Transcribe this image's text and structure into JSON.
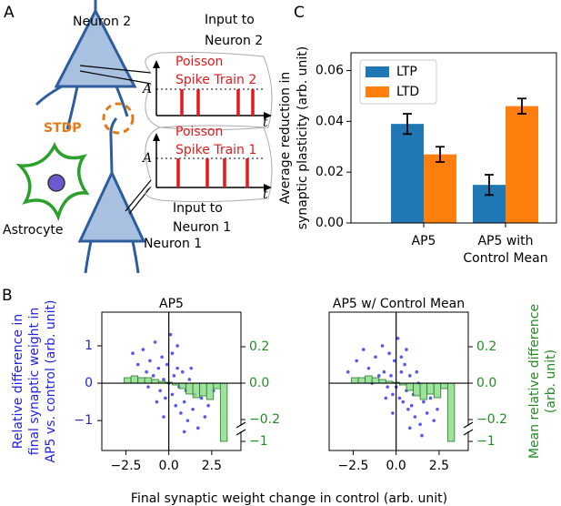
{
  "panel_labels": [
    "A",
    "B",
    "C"
  ],
  "diagram": {
    "neuron_2": "Neuron 2",
    "neuron_1": "Neuron 1",
    "astrocyte": "Astrocyte",
    "stdp": "STDP",
    "input_2": [
      "Input to",
      "Neuron 2"
    ],
    "train_2": [
      "Poisson",
      "Spike Train 2"
    ],
    "input_1": [
      "Input to",
      "Neuron 1"
    ],
    "train_1": [
      "Poisson",
      "Spike Train 1"
    ],
    "amplitude": "A",
    "time": "t"
  },
  "chart_data": [
    {
      "type": "bar",
      "ylabel": [
        "Average reduction in",
        "synaptic plasticity (arb. unit)"
      ],
      "categories": [
        [
          "AP5"
        ],
        [
          "AP5 with",
          "Control Mean"
        ]
      ],
      "series": [
        {
          "name": "LTP",
          "color": "#1f77b4",
          "values": [
            0.039,
            0.015
          ],
          "errors": [
            0.004,
            0.004
          ]
        },
        {
          "name": "LTD",
          "color": "#ff7f0e",
          "values": [
            0.027,
            0.046
          ],
          "errors": [
            0.003,
            0.003
          ]
        }
      ],
      "ylim": [
        0,
        0.067
      ],
      "yticks": [
        {
          "value": 0,
          "label": "0.00"
        },
        {
          "value": 0.02,
          "label": "0.02"
        },
        {
          "value": 0.04,
          "label": "0.04"
        },
        {
          "value": 0.06,
          "label": "0.06"
        }
      ],
      "legend": "upper-left"
    },
    {
      "type": "scatter",
      "title": "AP5",
      "ylabel": [
        "Relative difference in",
        "final synaptic weight in",
        "AP5 vs. control (arb. unit)"
      ],
      "xlabel": "Final synaptic weight change in control (arb. unit)",
      "ycolor": "#2323e0",
      "y2color": "#238b23",
      "xlim": [
        -3.9,
        4.2
      ],
      "xticks": [
        {
          "value": -2.5,
          "label": "−2.5"
        },
        {
          "value": 0,
          "label": "0.0"
        },
        2.5
      ],
      "ylim": [
        -1.8,
        1.9
      ],
      "yticks": [
        {
          "value": -1,
          "label": "−1"
        },
        0,
        1
      ],
      "y2lim": [
        -1.05,
        0.39
      ],
      "y2break": [
        -0.23,
        -0.95
      ],
      "y2ticks": [
        0.2,
        {
          "value": 0,
          "label": "0.0"
        },
        {
          "value": -0.2,
          "label": "−0.2"
        },
        {
          "value": -1,
          "label": "−1"
        }
      ],
      "points": {
        "color": "#3a3af5",
        "x": [
          -2.1,
          -1.8,
          -1.5,
          -1.3,
          -1.1,
          -0.9,
          -0.8,
          -0.6,
          -0.5,
          -0.4,
          -0.3,
          -0.2,
          -0.1,
          0.0,
          0.1,
          0.2,
          0.3,
          0.4,
          0.5,
          0.6,
          0.7,
          0.8,
          0.9,
          1.0,
          1.1,
          1.2,
          1.4,
          1.5,
          1.7,
          1.9,
          2.1,
          2.3,
          -0.7,
          0.2,
          -1.2,
          0.9,
          1.3,
          -0.3,
          0.5,
          2.6
        ],
        "y": [
          0.8,
          0.5,
          0.9,
          0.3,
          0.6,
          0.2,
          1.1,
          0.4,
          -0.2,
          0.7,
          0.1,
          -0.4,
          0.5,
          0.0,
          1.3,
          -0.3,
          0.2,
          -0.6,
          0.4,
          -0.1,
          -0.8,
          0.3,
          -0.5,
          -0.2,
          -1.0,
          0.1,
          -0.7,
          -0.3,
          -1.2,
          -0.4,
          -0.9,
          -0.6,
          -0.5,
          0.8,
          -0.1,
          -1.3,
          0.4,
          -0.9,
          1.0,
          -0.2
        ]
      },
      "histogram": {
        "axis": "y2",
        "color": "#86db86",
        "edgecolor": "#2a7a2a",
        "bins": [
          -2.6,
          -2.2,
          -1.8,
          -1.4,
          -1.0,
          -0.6,
          -0.2,
          0.2,
          0.6,
          1.0,
          1.4,
          1.8,
          2.2,
          2.6,
          3.0,
          3.4
        ],
        "values": [
          0.03,
          0.04,
          0.03,
          0.03,
          0.02,
          0.01,
          0.005,
          -0.01,
          -0.03,
          -0.06,
          -0.08,
          -0.07,
          -0.09,
          -0.03,
          -1.0
        ]
      }
    },
    {
      "type": "scatter",
      "title": "AP5 w/ Control Mean",
      "y2label": [
        "Mean relative difference",
        "(arb. unit)"
      ],
      "ycolor": "#2323e0",
      "y2color": "#238b23",
      "xlim": [
        -3.9,
        4.2
      ],
      "xticks": [
        {
          "value": -2.5,
          "label": "−2.5"
        },
        {
          "value": 0,
          "label": "0.0"
        },
        2.5
      ],
      "ylim": [
        -1.8,
        1.9
      ],
      "y2lim": [
        -1.05,
        0.39
      ],
      "y2break": [
        -0.23,
        -0.95
      ],
      "y2ticks": [
        0.2,
        {
          "value": 0,
          "label": "0.0"
        },
        {
          "value": -0.2,
          "label": "−0.2"
        },
        {
          "value": -1,
          "label": "−1"
        }
      ],
      "points": {
        "color": "#3a3af5",
        "x": [
          -2.3,
          -1.9,
          -1.6,
          -1.2,
          -1.0,
          -0.8,
          -0.7,
          -0.5,
          -0.4,
          -0.3,
          -0.2,
          -0.1,
          0.0,
          0.1,
          0.2,
          0.3,
          0.4,
          0.5,
          0.6,
          0.7,
          0.8,
          0.9,
          1.0,
          1.1,
          1.3,
          1.4,
          1.6,
          1.8,
          2.0,
          2.2,
          2.4,
          -0.6,
          0.3,
          -1.4,
          0.8,
          1.2,
          -0.2,
          0.6,
          -2.8,
          1.5
        ],
        "y": [
          0.6,
          0.9,
          0.4,
          0.7,
          0.2,
          1.0,
          0.3,
          -0.1,
          0.8,
          0.2,
          -0.3,
          0.6,
          -0.1,
          1.2,
          -0.4,
          0.3,
          -0.5,
          0.5,
          -0.2,
          -0.7,
          0.2,
          -0.6,
          -0.3,
          -0.9,
          0.0,
          -1.1,
          -0.5,
          -0.8,
          -0.4,
          -1.0,
          -0.7,
          -0.4,
          0.7,
          0.0,
          -1.2,
          0.3,
          -0.8,
          0.9,
          0.3,
          -1.4
        ]
      },
      "histogram": {
        "axis": "y2",
        "color": "#86db86",
        "edgecolor": "#2a7a2a",
        "bins": [
          -2.6,
          -2.2,
          -1.8,
          -1.4,
          -1.0,
          -0.6,
          -0.2,
          0.2,
          0.6,
          1.0,
          1.4,
          1.8,
          2.2,
          2.6,
          3.0,
          3.4
        ],
        "values": [
          0.03,
          0.03,
          0.04,
          0.03,
          0.02,
          0.01,
          0.005,
          -0.01,
          -0.04,
          -0.07,
          -0.09,
          -0.06,
          -0.08,
          -0.03,
          -1.0
        ]
      }
    }
  ]
}
